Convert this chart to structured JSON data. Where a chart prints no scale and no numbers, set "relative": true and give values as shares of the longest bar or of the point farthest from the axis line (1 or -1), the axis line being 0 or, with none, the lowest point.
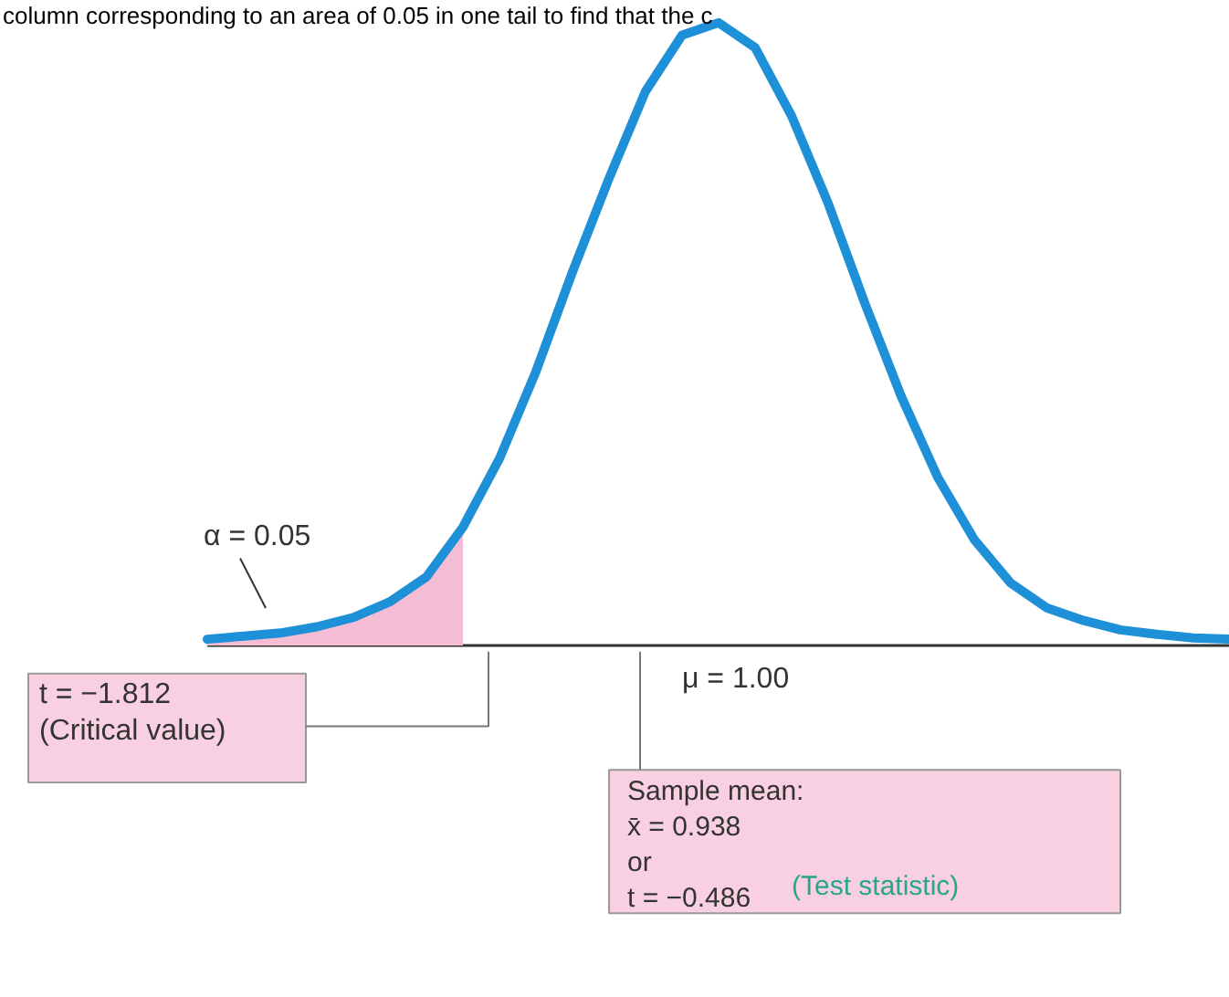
{
  "chart_data": {
    "type": "line",
    "relative": true,
    "categories": [
      null,
      null,
      null,
      null,
      null,
      null,
      null,
      null,
      null,
      null,
      null,
      null,
      null,
      null,
      null,
      null,
      null,
      null,
      null,
      null,
      null,
      null,
      null,
      null,
      null,
      null,
      null,
      null,
      null
    ],
    "series": [
      {
        "type": "line",
        "color": "#1e90d8",
        "values": [
          0.01,
          0.015,
          0.02,
          0.03,
          0.045,
          0.07,
          0.11,
          0.19,
          0.3,
          0.44,
          0.6,
          0.75,
          0.89,
          0.98,
          1.0,
          0.96,
          0.85,
          0.71,
          0.55,
          0.4,
          0.27,
          0.17,
          0.1,
          0.06,
          0.04,
          0.025,
          0.018,
          0.012,
          0.01
        ]
      },
      {
        "type": "area",
        "color": "#f5bcd6",
        "values": [
          0.01,
          0.015,
          0.02,
          0.03,
          0.045,
          0.07,
          0.11,
          0.19,
          null,
          null,
          null,
          null,
          null,
          null,
          null,
          null,
          null,
          null,
          null,
          null,
          null,
          null,
          null,
          null,
          null,
          null,
          null,
          null,
          null
        ]
      }
    ],
    "annotations": [
      "column corresponding to an area of 0.05 in one tail to find that the c",
      "α = 0.05",
      "t = −1.812\n(Critical value)",
      "μ = 1.00",
      "Sample mean:\nx̄ = 0.938\n   or\nt = −0.486",
      "(Test statistic)"
    ]
  }
}
